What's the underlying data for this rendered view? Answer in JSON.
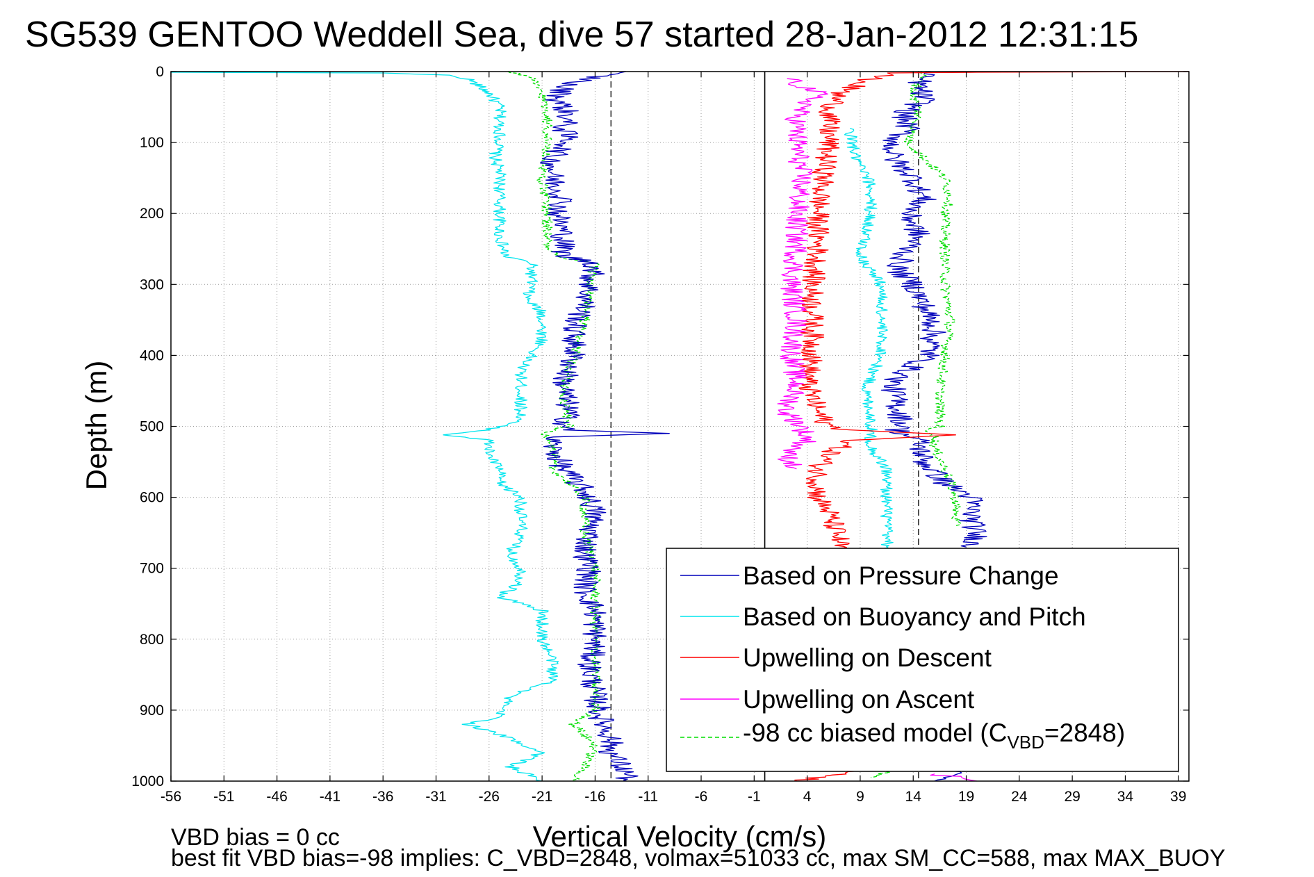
{
  "chart_data": {
    "type": "line",
    "title": "SG539 GENTOO Weddell Sea, dive 57 started 28-Jan-2012 12:31:15",
    "xlabel": "Vertical Velocity (cm/s)",
    "ylabel": "Depth (m)",
    "xlim": [
      -56,
      40
    ],
    "ylim": [
      0,
      1000
    ],
    "y_reversed": true,
    "grid": true,
    "x_ticks": [
      -56,
      -51,
      -46,
      -41,
      -36,
      -31,
      -26,
      -21,
      -16,
      -11,
      -6,
      -1,
      4,
      9,
      14,
      19,
      24,
      29,
      34,
      39
    ],
    "y_ticks": [
      0,
      100,
      200,
      300,
      400,
      500,
      600,
      700,
      800,
      900,
      1000
    ],
    "reference_lines": [
      {
        "x": -14.5,
        "style": "dashed",
        "color": "#333333"
      },
      {
        "x": 0,
        "style": "solid",
        "color": "#000000"
      },
      {
        "x": 14.5,
        "style": "dashed",
        "color": "#333333"
      }
    ],
    "legend_position": "bottom-right",
    "series": [
      {
        "name": "Based on Pressure Change",
        "color": "#0000bb",
        "style": "solid",
        "segments": [
          {
            "depth": [
              0,
              20,
              40,
              60,
              80,
              100,
              120,
              150,
              180,
              200,
              230,
              260,
              270,
              300,
              330,
              360,
              400,
              440,
              480,
              505,
              510,
              515,
              530,
              560,
              590,
              620,
              650,
              680,
              700,
              730,
              760,
              800,
              840,
              880,
              910,
              940,
              960,
              990,
              1000
            ],
            "velocity": [
              -14,
              -19,
              -19.5,
              -18.5,
              -19,
              -18.5,
              -20,
              -20,
              -19,
              -19.5,
              -19,
              -19,
              -16,
              -16.5,
              -17,
              -18,
              -18,
              -19,
              -18.5,
              -19,
              -9,
              -20,
              -20,
              -19,
              -17,
              -16,
              -16.5,
              -17,
              -16.5,
              -17,
              -16,
              -16,
              -16.5,
              -16,
              -15.5,
              -14.5,
              -14.5,
              -13,
              -13
            ]
          },
          {
            "depth": [
              0,
              20,
              40,
              60,
              80,
              100,
              120,
              150,
              180,
              200,
              230,
              260,
              280,
              300,
              330,
              360,
              400,
              420,
              440,
              470,
              500,
              505,
              510,
              520,
              550,
              580,
              600,
              630,
              660,
              670
            ],
            "velocity": [
              15,
              14.5,
              15,
              13,
              13.5,
              12,
              12,
              14,
              15,
              13.5,
              14.5,
              13,
              12.5,
              14,
              15,
              16,
              15.5,
              13.5,
              12,
              12.5,
              13,
              12.5,
              13,
              14.5,
              15,
              17,
              19.5,
              19.5,
              20,
              19
            ]
          },
          {
            "depth": [
              985,
              990,
              995,
              1000
            ],
            "velocity": [
              18,
              19,
              18,
              16
            ]
          }
        ]
      },
      {
        "name": "Based on Buoyancy and Pitch",
        "color": "#00e5ee",
        "style": "solid",
        "segments": [
          {
            "depth": [
              1,
              2,
              5,
              10,
              20,
              30,
              50,
              70,
              100,
              120,
              140,
              160,
              200,
              230,
              260,
              270,
              300,
              320,
              340,
              380,
              400,
              420,
              460,
              490,
              505,
              512,
              520,
              540,
              560,
              580,
              600,
              620,
              650,
              680,
              700,
              720,
              740,
              760,
              780,
              800,
              830,
              860,
              880,
              900,
              910,
              920,
              940,
              960,
              980,
              1000
            ],
            "velocity": [
              -56,
              -36,
              -30,
              -28,
              -27,
              -26,
              -25,
              -25,
              -25,
              -25.5,
              -25,
              -25,
              -25,
              -25,
              -24.5,
              -22,
              -22,
              -22.5,
              -21,
              -21,
              -22,
              -23,
              -23,
              -23,
              -26,
              -30,
              -26,
              -26,
              -25,
              -25,
              -23,
              -23,
              -23,
              -24,
              -23,
              -23,
              -25,
              -21,
              -21,
              -21,
              -20,
              -20,
              -24,
              -25,
              -25,
              -28,
              -24,
              -21,
              -24,
              -21
            ]
          },
          {
            "depth": [
              80,
              120,
              160,
              200,
              230,
              260,
              280,
              300,
              330,
              360,
              400,
              430,
              450,
              480,
              500,
              510,
              530,
              560,
              580,
              600,
              640,
              680
            ],
            "velocity": [
              8,
              8.5,
              10,
              10,
              9.5,
              9,
              10,
              11,
              11,
              11,
              11,
              10,
              9.5,
              10,
              10,
              10,
              10,
              11.5,
              11.5,
              11.5,
              11.5,
              11.5
            ]
          }
        ]
      },
      {
        "name": "Upwelling on Descent",
        "color": "#ff0000",
        "style": "solid",
        "segments": [
          {
            "depth": [
              0,
              1,
              2,
              10,
              30,
              60,
              100,
              150,
              200,
              250,
              300,
              350,
              400,
              440,
              480,
              500,
              505,
              512,
              520,
              540,
              560,
              580,
              600,
              620,
              640,
              660,
              680
            ],
            "velocity": [
              40,
              20,
              12,
              10,
              7,
              6,
              6,
              5.5,
              5,
              5,
              4.5,
              4.5,
              4.5,
              4,
              5,
              6,
              8,
              18,
              8,
              6,
              5,
              5,
              5,
              6,
              6.5,
              7,
              7
            ]
          },
          {
            "depth": [
              985,
              990,
              1000
            ],
            "velocity": [
              9,
              7,
              3
            ]
          }
        ]
      },
      {
        "name": "Upwelling on Ascent",
        "color": "#ff00ff",
        "style": "solid",
        "segments": [
          {
            "depth": [
              10,
              30,
              60,
              100,
              150,
              200,
              250,
              300,
              350,
              400,
              440,
              480,
              500,
              520,
              540,
              560
            ],
            "velocity": [
              2,
              5,
              3,
              3,
              3.5,
              3,
              3,
              2.5,
              3,
              2.5,
              3,
              2,
              3.5,
              4,
              2,
              3
            ]
          },
          {
            "depth": [
              990,
              995,
              1000
            ],
            "velocity": [
              15,
              19,
              20
            ]
          }
        ]
      },
      {
        "name": "-98 cc biased model (C_VBD=2848)",
        "color": "#00dd00",
        "style": "dashed",
        "segments": [
          {
            "depth": [
              0,
              10,
              30,
              60,
              100,
              150,
              200,
              250,
              262,
              270,
              300,
              350,
              400,
              450,
              500,
              505,
              510,
              520,
              560,
              600,
              650,
              700,
              750,
              800,
              850,
              900,
              920,
              950,
              980,
              1000
            ],
            "velocity": [
              -24,
              -22,
              -21,
              -20.5,
              -20.5,
              -21,
              -20.5,
              -20.5,
              -19.5,
              -16,
              -16.5,
              -17,
              -18,
              -19,
              -18.5,
              -20,
              -21,
              -20,
              -20,
              -17,
              -17,
              -16,
              -16,
              -16,
              -16,
              -16,
              -18,
              -16,
              -17,
              -18
            ]
          },
          {
            "depth": [
              0,
              30,
              60,
              100,
              150,
              180,
              200,
              250,
              300,
              350,
              400,
              450,
              500,
              505,
              510,
              530,
              560,
              600,
              640
            ],
            "velocity": [
              15,
              14,
              14.5,
              13.5,
              17,
              17.5,
              17,
              17,
              17,
              17.5,
              17,
              16.5,
              16.5,
              15,
              16,
              16,
              17,
              18,
              18
            ]
          },
          {
            "depth": [
              975,
              985,
              995
            ],
            "velocity": [
              14,
              12,
              10
            ]
          }
        ]
      }
    ],
    "legend_entries": [
      {
        "label": "Based on Pressure Change",
        "color": "#0000bb",
        "style": "solid"
      },
      {
        "label": "Based on Buoyancy and Pitch",
        "color": "#00e5ee",
        "style": "solid"
      },
      {
        "label": "Upwelling on Descent",
        "color": "#ff0000",
        "style": "solid"
      },
      {
        "label": "Upwelling on Ascent",
        "color": "#ff00ff",
        "style": "solid"
      },
      {
        "label_main": "-98 cc biased model (C",
        "label_sub": "VBD",
        "label_tail": "=2848)",
        "color": "#00dd00",
        "style": "dashed"
      }
    ]
  },
  "footer": {
    "line1": "VBD bias = 0 cc",
    "line2": "best fit VBD bias=-98 implies: C_VBD=2848, volmax=51033 cc, max SM_CC=588, max MAX_BUOY"
  }
}
